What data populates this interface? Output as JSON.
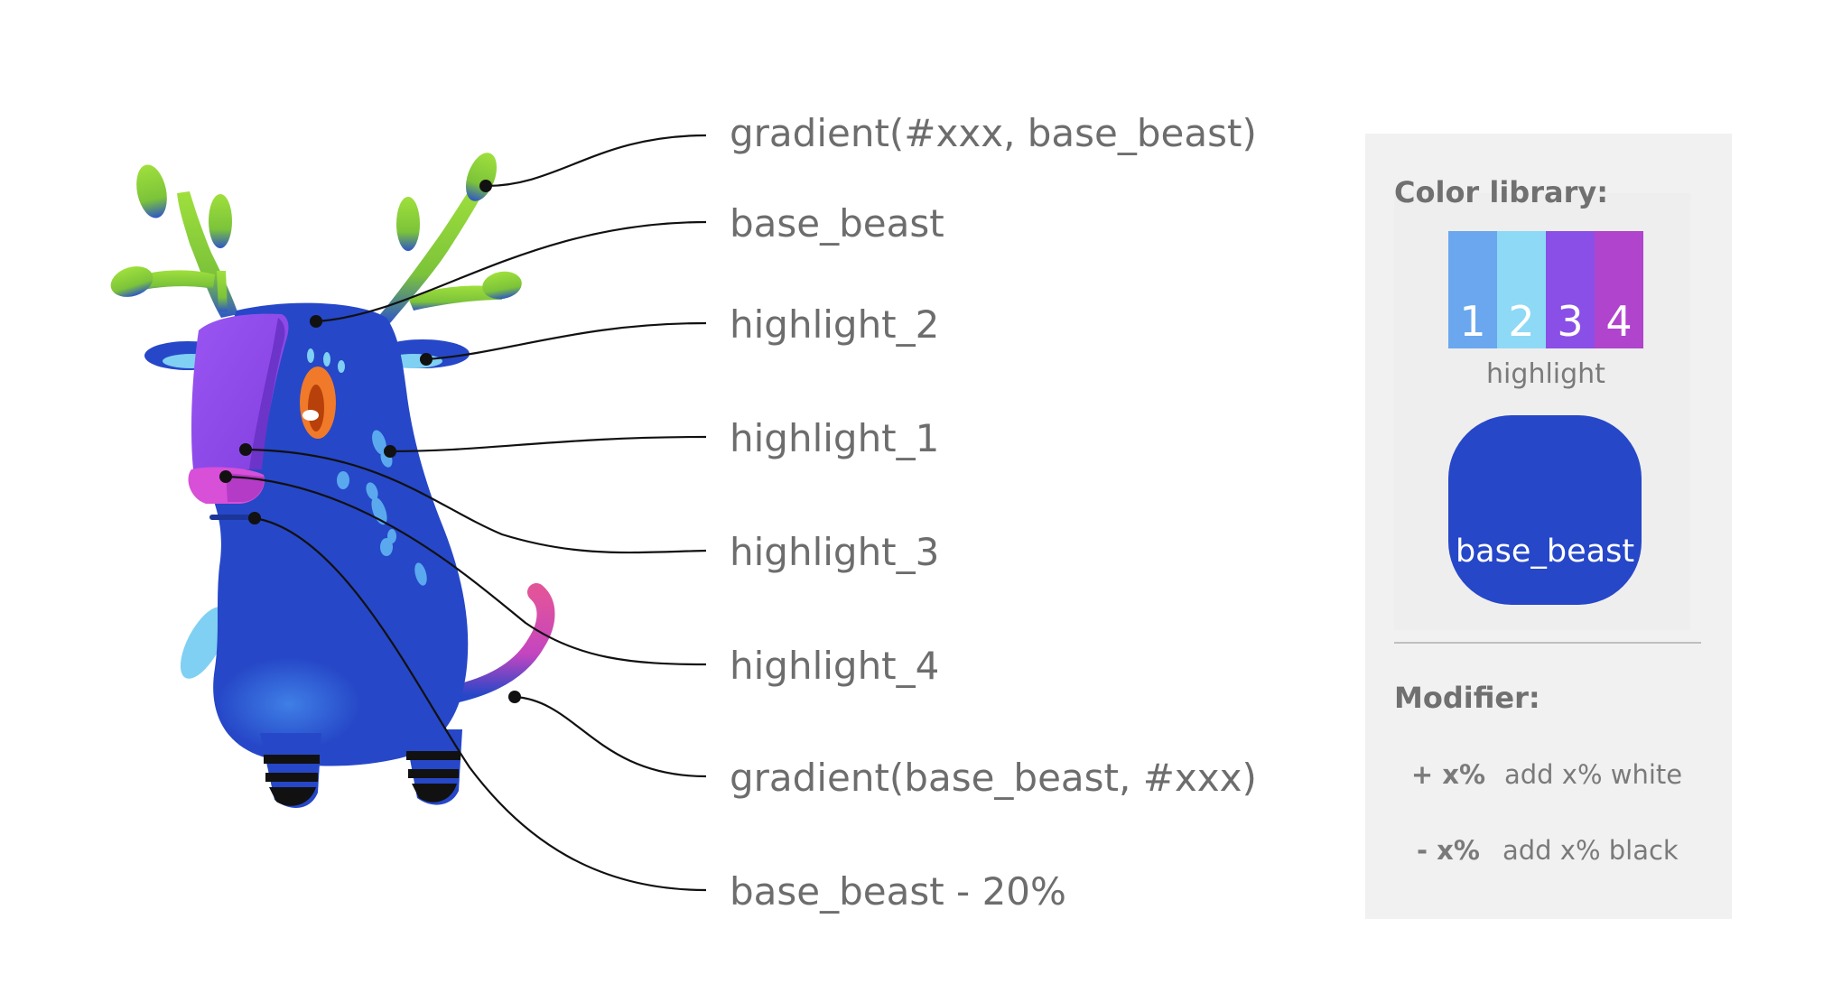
{
  "labels": [
    "gradient(#xxx, base_beast)",
    "base_beast",
    "highlight_2",
    "highlight_1",
    "highlight_3",
    "highlight_4",
    "gradient(base_beast, #xxx)",
    "base_beast - 20%"
  ],
  "panel": {
    "color_library_heading": "Color library:",
    "swatches": [
      {
        "number": "1",
        "color": "#6aa7ef"
      },
      {
        "number": "2",
        "color": "#8ed9f5"
      },
      {
        "number": "3",
        "color": "#8a4fe6"
      },
      {
        "number": "4",
        "color": "#b044cc"
      }
    ],
    "swatch_caption": "highlight",
    "base_swatch_color": "#2647c8",
    "base_swatch_label": "base_beast",
    "modifier_heading": "Modifier:",
    "modifiers": [
      {
        "key": "+ x%",
        "value": "add x% white"
      },
      {
        "key": "- x%",
        "value": "add x% black"
      }
    ]
  },
  "colors": {
    "base_beast": "#2647c8",
    "antler_green": "#8ccf3c",
    "snout": "#a54ef0",
    "nose": "#d84fd8",
    "eye": "#f07a2a",
    "highlight_light": "#7fd0f3"
  }
}
